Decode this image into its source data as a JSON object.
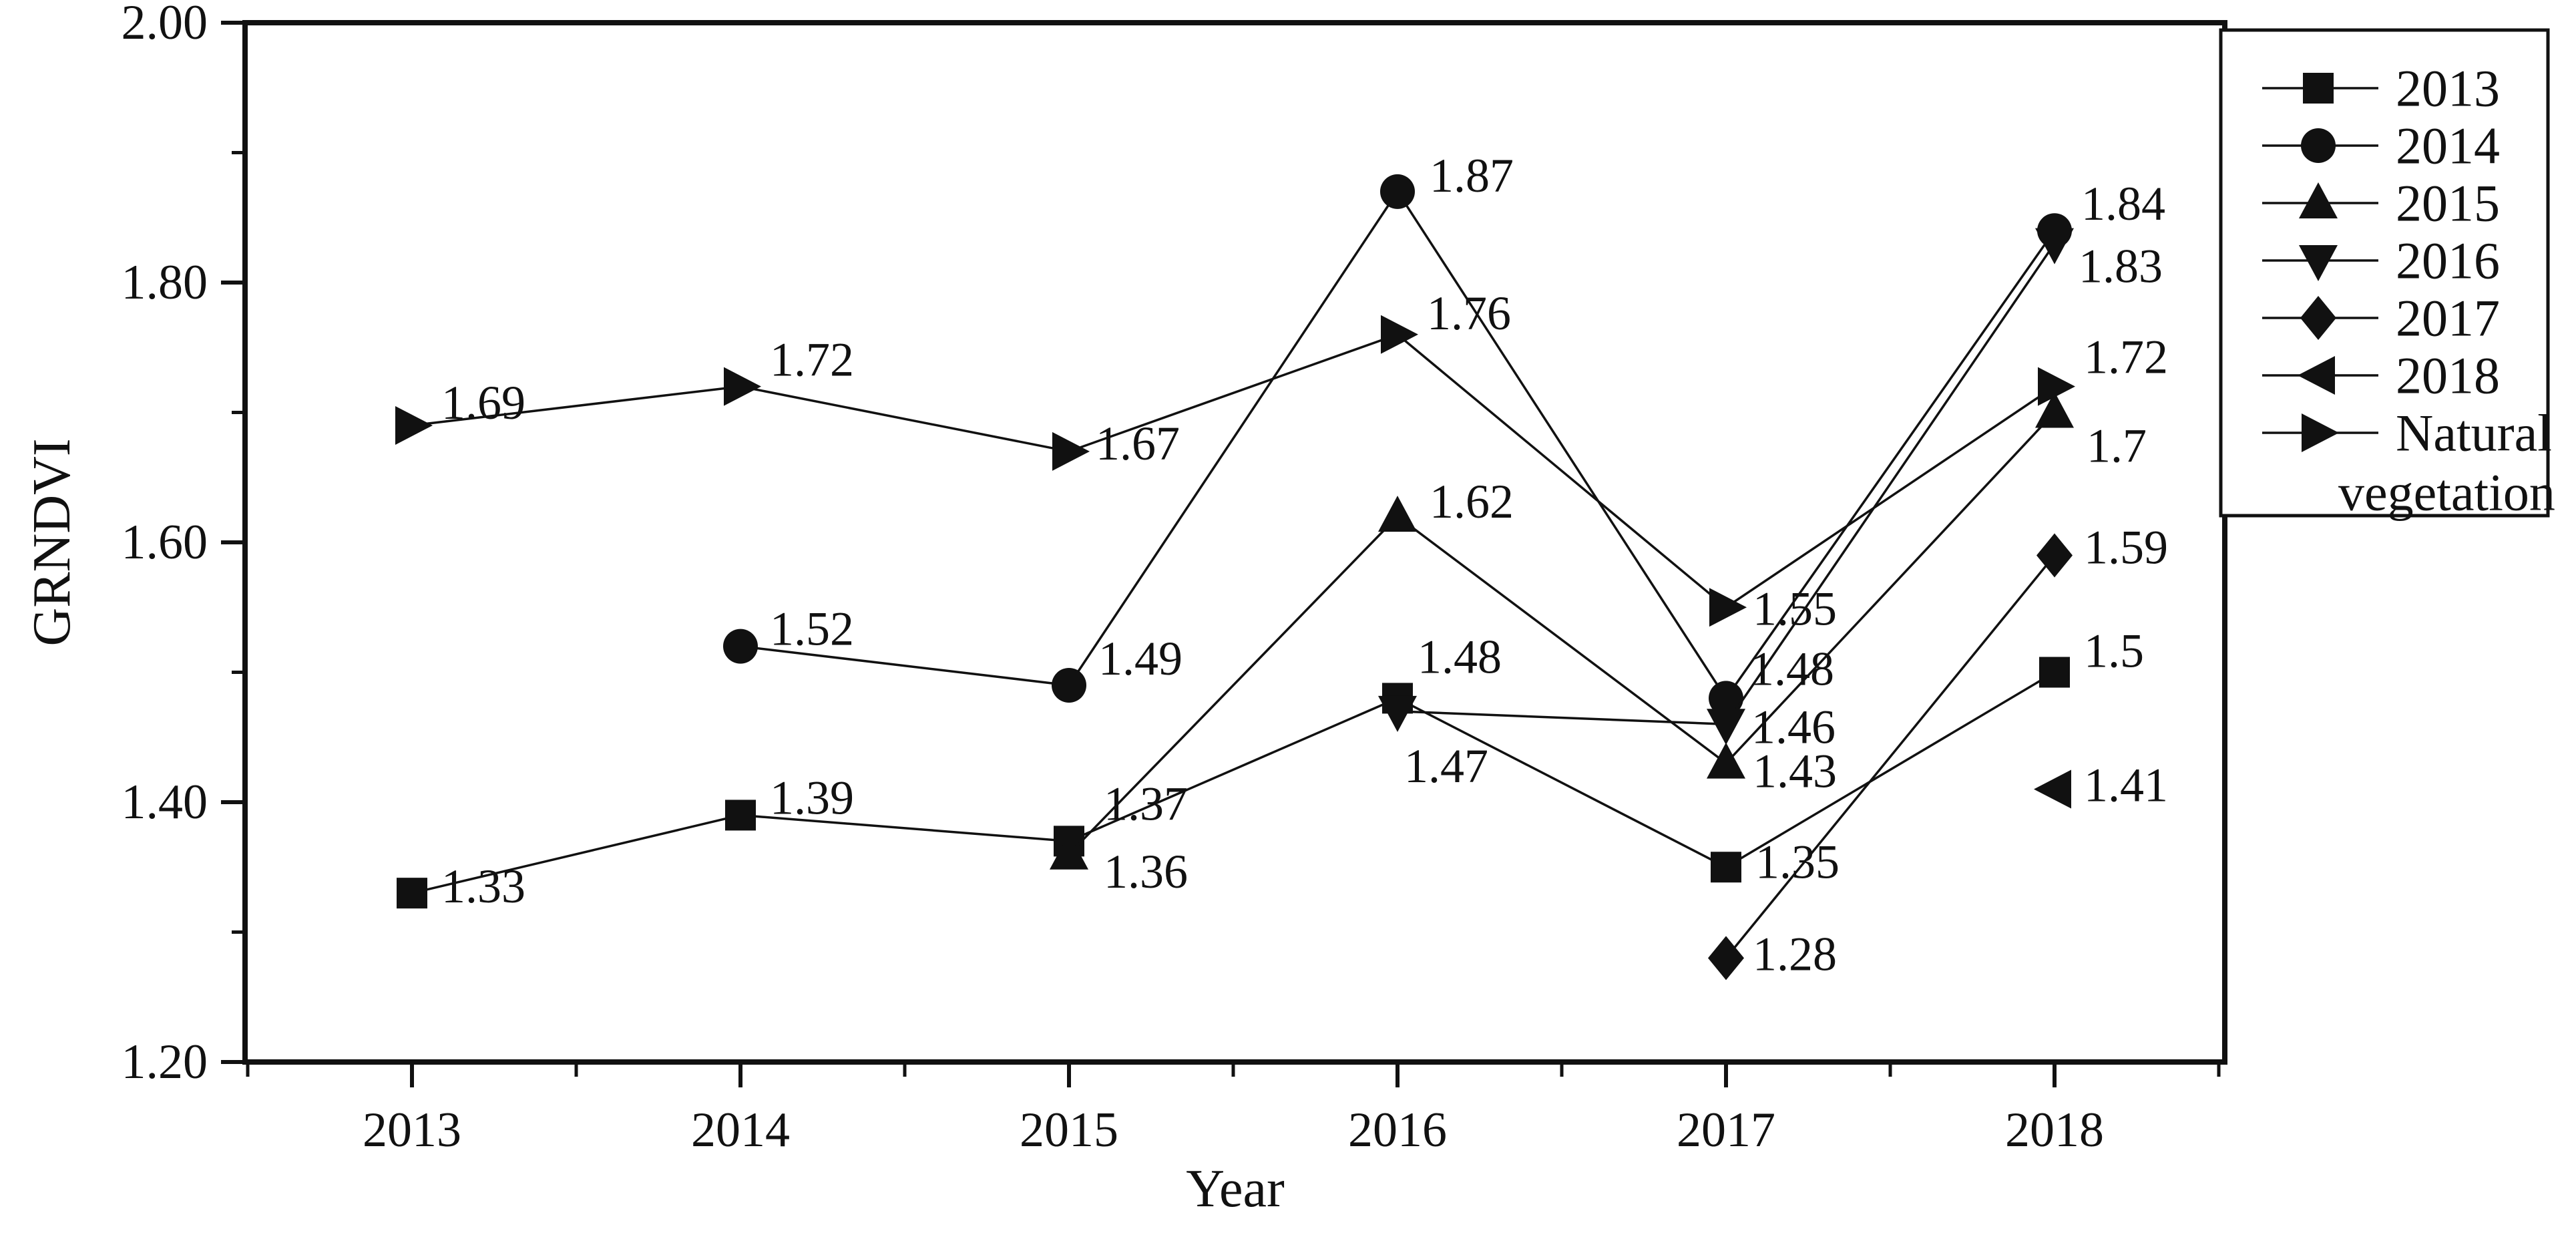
{
  "page": {
    "background": "#ffffff"
  },
  "chart_data": {
    "type": "line",
    "title": "",
    "xlabel": "Year",
    "ylabel": "GRNDVI",
    "xlim": [
      2012.5,
      2018.5
    ],
    "ylim": [
      1.2,
      2.0
    ],
    "grid": false,
    "legend_position": "outside-right-top",
    "colors": {
      "foreground": "#111111",
      "background": "#ffffff"
    },
    "x_axis": {
      "tick_values": [
        2013,
        2014,
        2015,
        2016,
        2017,
        2018
      ],
      "tick_labels": [
        "2013",
        "2014",
        "2015",
        "2016",
        "2017",
        "2018"
      ],
      "minor_tick_values": [
        2012.5,
        2013.5,
        2014.5,
        2015.5,
        2016.5,
        2017.5,
        2018.5
      ]
    },
    "y_axis": {
      "tick_values": [
        2.0,
        1.8,
        1.6,
        1.4,
        1.2
      ],
      "tick_labels": [
        "2.00",
        "1.80",
        "1.60",
        "1.40",
        "1.20"
      ],
      "minor_tick_values": [
        1.9,
        1.7,
        1.5,
        1.3
      ]
    },
    "series": [
      {
        "name": "2013",
        "marker": "square",
        "points": [
          {
            "x": 2013,
            "y": 1.33,
            "label": "1.33",
            "label_dx": 44,
            "label_dy": -10
          },
          {
            "x": 2014,
            "y": 1.39,
            "label": "1.39",
            "label_dx": 44,
            "label_dy": -26
          },
          {
            "x": 2015,
            "y": 1.37,
            "label": "1.37",
            "label_dx": 52,
            "label_dy": -56
          },
          {
            "x": 2016,
            "y": 1.48,
            "label": "1.48",
            "label_dx": 30,
            "label_dy": -62
          },
          {
            "x": 2017,
            "y": 1.35,
            "label": "1.35",
            "label_dx": 44,
            "label_dy": -8
          },
          {
            "x": 2018,
            "y": 1.5,
            "label": "1.5",
            "label_dx": 44,
            "label_dy": -32
          }
        ]
      },
      {
        "name": "2014",
        "marker": "circle",
        "points": [
          {
            "x": 2014,
            "y": 1.52,
            "label": "1.52",
            "label_dx": 44,
            "label_dy": -26
          },
          {
            "x": 2015,
            "y": 1.49,
            "label": "1.49",
            "label_dx": 44,
            "label_dy": -40
          },
          {
            "x": 2016,
            "y": 1.87,
            "label": "1.87",
            "label_dx": 48,
            "label_dy": -24
          },
          {
            "x": 2017,
            "y": 1.48,
            "label": "1.48",
            "label_dx": 36,
            "label_dy": -44
          },
          {
            "x": 2018,
            "y": 1.84,
            "label": "1.84",
            "label_dx": 40,
            "label_dy": -40
          }
        ]
      },
      {
        "name": "2015",
        "marker": "triangle-up",
        "points": [
          {
            "x": 2015,
            "y": 1.36,
            "label": "1.36",
            "label_dx": 52,
            "label_dy": 26
          },
          {
            "x": 2016,
            "y": 1.62,
            "label": "1.62",
            "label_dx": 48,
            "label_dy": -22
          },
          {
            "x": 2017,
            "y": 1.43,
            "label": "1.43",
            "label_dx": 40,
            "label_dy": 12
          },
          {
            "x": 2018,
            "y": 1.7,
            "label": "1.7",
            "label_dx": 48,
            "label_dy": 50
          }
        ]
      },
      {
        "name": "2016",
        "marker": "triangle-down",
        "points": [
          {
            "x": 2016,
            "y": 1.47,
            "label": "1.47",
            "label_dx": 10,
            "label_dy": 82
          },
          {
            "x": 2017,
            "y": 1.46,
            "label": "1.46",
            "label_dx": 38,
            "label_dy": 4
          },
          {
            "x": 2018,
            "y": 1.83,
            "label": "1.83",
            "label_dx": 36,
            "label_dy": 34
          }
        ]
      },
      {
        "name": "2017",
        "marker": "diamond",
        "points": [
          {
            "x": 2017,
            "y": 1.28,
            "label": "1.28",
            "label_dx": 40,
            "label_dy": -6
          },
          {
            "x": 2018,
            "y": 1.59,
            "label": "1.59",
            "label_dx": 44,
            "label_dy": -12
          }
        ]
      },
      {
        "name": "2018",
        "marker": "triangle-left",
        "points": [
          {
            "x": 2018,
            "y": 1.41,
            "label": "1.41",
            "label_dx": 44,
            "label_dy": -6
          }
        ]
      },
      {
        "name": "Natural vegetation",
        "marker": "triangle-right",
        "points": [
          {
            "x": 2013,
            "y": 1.69,
            "label": "1.69",
            "label_dx": 44,
            "label_dy": -34
          },
          {
            "x": 2014,
            "y": 1.72,
            "label": "1.72",
            "label_dx": 44,
            "label_dy": -40
          },
          {
            "x": 2015,
            "y": 1.67,
            "label": "1.67",
            "label_dx": 40,
            "label_dy": -12
          },
          {
            "x": 2016,
            "y": 1.76,
            "label": "1.76",
            "label_dx": 44,
            "label_dy": -32
          },
          {
            "x": 2017,
            "y": 1.55,
            "label": "1.55",
            "label_dx": 40,
            "label_dy": 2
          },
          {
            "x": 2018,
            "y": 1.72,
            "label": "1.72",
            "label_dx": 44,
            "label_dy": -44
          }
        ]
      }
    ],
    "legend": {
      "entries": [
        {
          "marker": "square",
          "lines": [
            "2013"
          ]
        },
        {
          "marker": "circle",
          "lines": [
            "2014"
          ]
        },
        {
          "marker": "triangle-up",
          "lines": [
            "2015"
          ]
        },
        {
          "marker": "triangle-down",
          "lines": [
            "2016"
          ]
        },
        {
          "marker": "diamond",
          "lines": [
            "2017"
          ]
        },
        {
          "marker": "triangle-left",
          "lines": [
            "2018"
          ]
        },
        {
          "marker": "triangle-right",
          "lines": [
            "Natural",
            "vegetation"
          ]
        }
      ]
    }
  }
}
